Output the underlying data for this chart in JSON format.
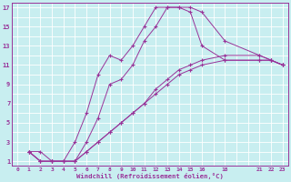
{
  "background_color": "#c8eef0",
  "grid_color": "#ffffff",
  "line_color": "#993399",
  "xlabel": "Windchill (Refroidissement éolien,°C)",
  "ylabel_ticks": [
    1,
    3,
    5,
    7,
    9,
    11,
    13,
    15,
    17
  ],
  "xlabel_ticks": [
    0,
    1,
    2,
    3,
    4,
    5,
    6,
    7,
    8,
    9,
    10,
    11,
    12,
    13,
    14,
    15,
    16,
    18,
    21,
    22,
    23
  ],
  "xlim": [
    -0.5,
    23.5
  ],
  "ylim": [
    0.5,
    17.5
  ],
  "series": [
    {
      "x": [
        1,
        2,
        3,
        4,
        5,
        6,
        7,
        8,
        9,
        10,
        11,
        12,
        13,
        14,
        15,
        16,
        18,
        21,
        22,
        23
      ],
      "y": [
        2,
        2,
        1,
        1,
        3,
        6,
        10,
        12,
        11.5,
        13,
        15,
        17,
        17,
        17,
        16.5,
        13,
        11.5,
        11.5,
        11.5,
        11
      ]
    },
    {
      "x": [
        1,
        2,
        3,
        4,
        5,
        6,
        7,
        8,
        9,
        10,
        11,
        12,
        13,
        14,
        15,
        16,
        18,
        21,
        22,
        23
      ],
      "y": [
        2,
        1,
        1,
        1,
        1,
        3,
        5.5,
        9,
        9.5,
        11,
        13.5,
        15,
        17,
        17,
        17,
        16.5,
        13.5,
        12,
        11.5,
        11
      ]
    },
    {
      "x": [
        1,
        2,
        3,
        4,
        5,
        6,
        7,
        8,
        9,
        10,
        11,
        12,
        13,
        14,
        15,
        16,
        18,
        21,
        22,
        23
      ],
      "y": [
        2,
        1,
        1,
        1,
        1,
        2,
        3,
        4,
        5,
        6,
        7,
        8.5,
        9.5,
        10.5,
        11,
        11.5,
        12,
        12,
        11.5,
        11
      ]
    },
    {
      "x": [
        1,
        2,
        3,
        4,
        5,
        6,
        7,
        8,
        9,
        10,
        11,
        12,
        13,
        14,
        15,
        16,
        18,
        21,
        22,
        23
      ],
      "y": [
        2,
        1,
        1,
        1,
        1,
        2,
        3,
        4,
        5,
        6,
        7,
        8,
        9,
        10,
        10.5,
        11,
        11.5,
        11.5,
        11.5,
        11
      ]
    }
  ]
}
